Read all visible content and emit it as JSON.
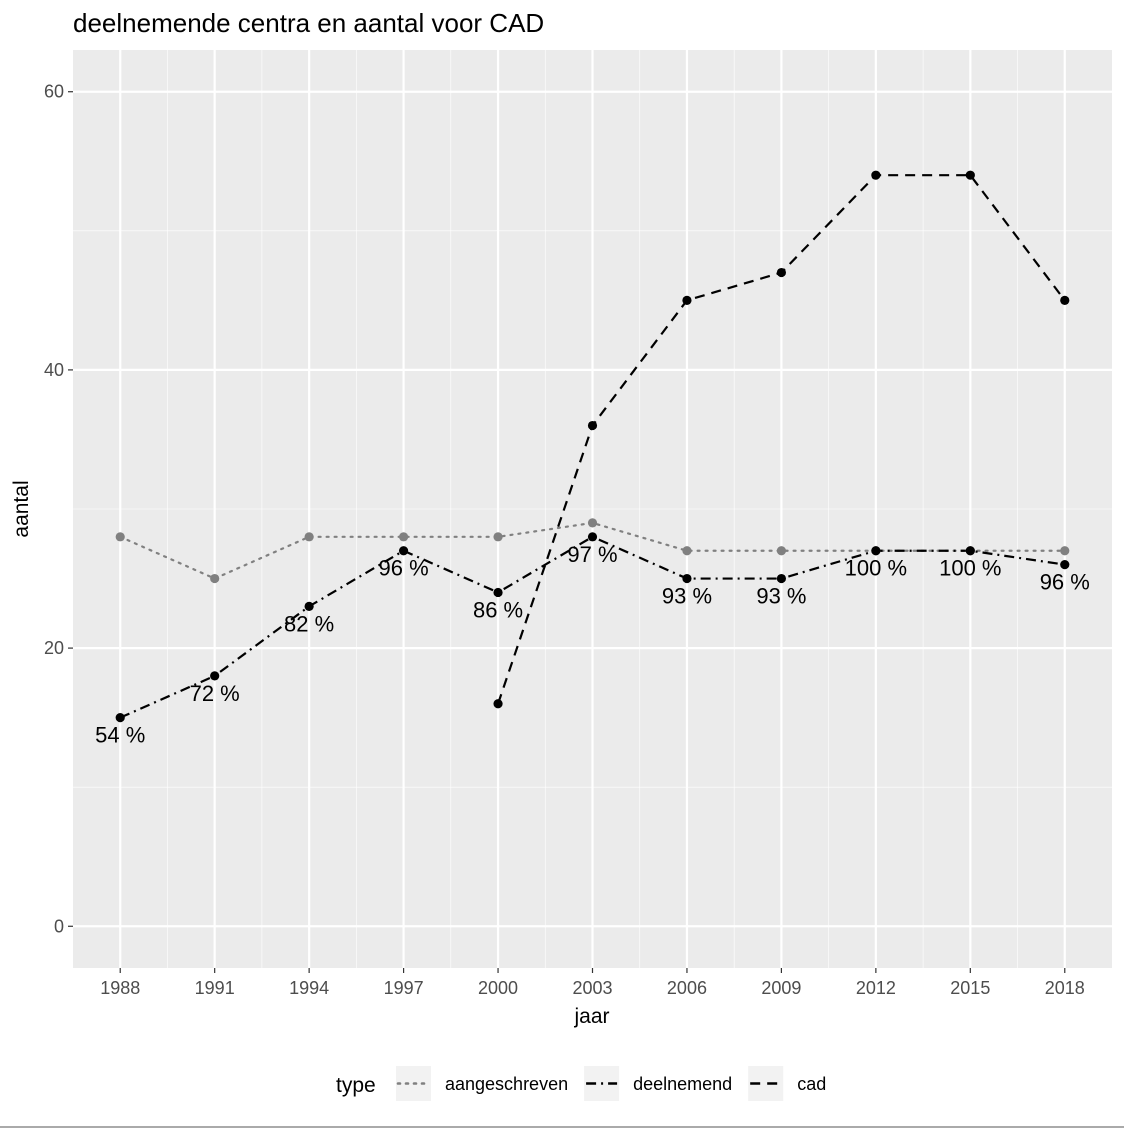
{
  "chart_data": {
    "type": "line",
    "title": "deelnemende centra en aantal voor CAD",
    "xlabel": "jaar",
    "ylabel": "aantal",
    "x": [
      1988,
      1991,
      1994,
      1997,
      2000,
      2003,
      2006,
      2009,
      2012,
      2015,
      2018
    ],
    "x_ticks": [
      "1988",
      "1991",
      "1994",
      "1997",
      "2000",
      "2003",
      "2006",
      "2009",
      "2012",
      "2015",
      "2018"
    ],
    "y_ticks": [
      "0",
      "20",
      "40",
      "60"
    ],
    "ylim": [
      -3,
      63
    ],
    "xlim": [
      1986.5,
      2019.5
    ],
    "grid": true,
    "legend_title": "type",
    "legend_position": "bottom",
    "series": [
      {
        "name": "aangeschreven",
        "linestyle": "dotted",
        "color": "#808080",
        "x": [
          1988,
          1991,
          1994,
          1997,
          2000,
          2003,
          2006,
          2009,
          2012,
          2015,
          2018
        ],
        "values": [
          28,
          25,
          28,
          28,
          28,
          29,
          27,
          27,
          27,
          27,
          27
        ]
      },
      {
        "name": "deelnemend",
        "linestyle": "dashdot",
        "color": "#000000",
        "x": [
          1988,
          1991,
          1994,
          1997,
          2000,
          2003,
          2006,
          2009,
          2012,
          2015,
          2018
        ],
        "values": [
          15,
          18,
          23,
          27,
          24,
          28,
          25,
          25,
          27,
          27,
          26
        ],
        "labels": [
          "54 %",
          "72 %",
          "82 %",
          "96 %",
          "86 %",
          "97 %",
          "93 %",
          "93 %",
          "100 %",
          "100 %",
          "96 %"
        ]
      },
      {
        "name": "cad",
        "linestyle": "dashed",
        "color": "#000000",
        "x": [
          2000,
          2003,
          2006,
          2009,
          2012,
          2015,
          2018
        ],
        "values": [
          16,
          36,
          45,
          47,
          54,
          54,
          45
        ]
      }
    ]
  }
}
